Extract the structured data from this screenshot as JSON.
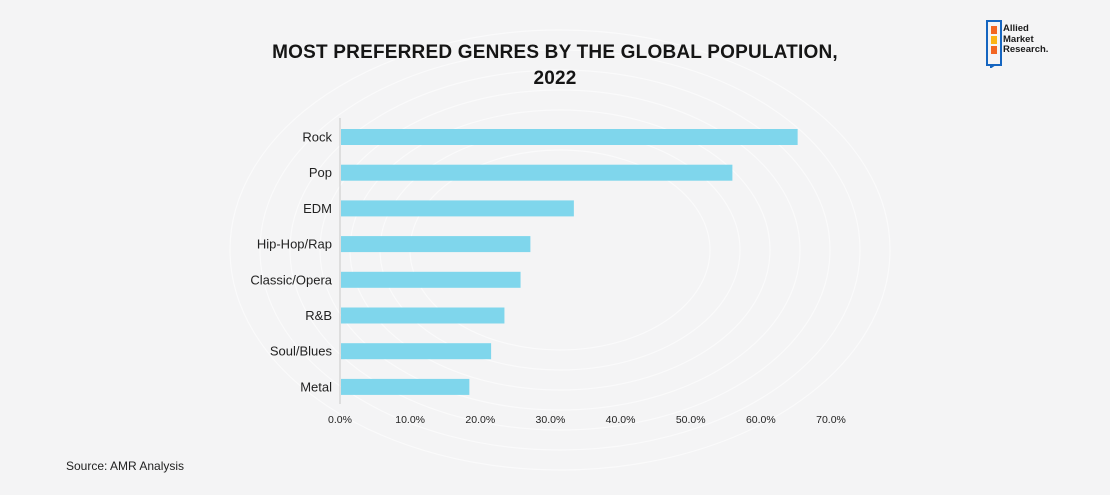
{
  "title": "MOST PREFERRED GENRES BY THE GLOBAL POPULATION, 2022",
  "source": "Source: AMR Analysis",
  "logo": {
    "line1": "Allied",
    "line2": "Market",
    "line3": "Research."
  },
  "colors": {
    "bar": "#7fd6ec",
    "axis": "#c8c8c8",
    "logo_orange": "#f26522",
    "logo_yellow": "#fbb316",
    "logo_blue": "#1565c0"
  },
  "chart_data": {
    "type": "bar",
    "orientation": "horizontal",
    "categories": [
      "Rock",
      "Pop",
      "EDM",
      "Hip-Hop/Rap",
      "Classic/Opera",
      "R&B",
      "Soul/Blues",
      "Metal"
    ],
    "values": [
      65.1,
      55.8,
      33.2,
      27.0,
      25.6,
      23.3,
      21.4,
      18.3
    ],
    "x_ticks": [
      "0.0%",
      "10.0%",
      "20.0%",
      "30.0%",
      "40.0%",
      "50.0%",
      "60.0%",
      "70.0%"
    ],
    "xlim": [
      0,
      70
    ],
    "title": "MOST PREFERRED GENRES BY THE GLOBAL POPULATION, 2022",
    "xlabel": "",
    "ylabel": "",
    "grid": false
  }
}
